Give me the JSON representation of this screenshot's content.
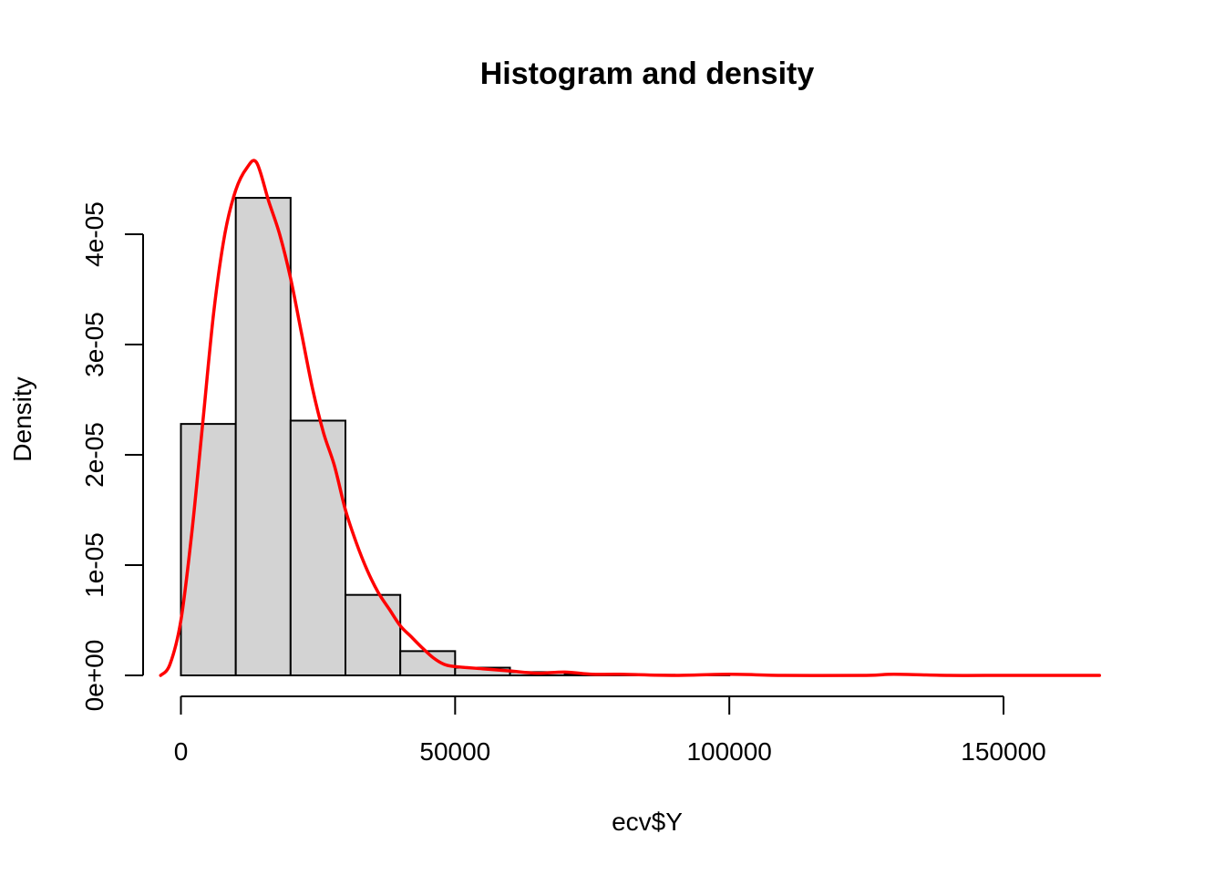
{
  "chart_data": {
    "type": "bar",
    "title": "Histogram and density",
    "xlabel": "ecv$Y",
    "ylabel": "Density",
    "xlim": [
      -4000,
      170000
    ],
    "ylim": [
      0,
      4.6e-05
    ],
    "grid": false,
    "legend": "none",
    "x_ticks": [
      {
        "value": 0,
        "label": "0"
      },
      {
        "value": 50000,
        "label": "50000"
      },
      {
        "value": 100000,
        "label": "100000"
      },
      {
        "value": 150000,
        "label": "150000"
      }
    ],
    "y_ticks": [
      {
        "value": 0,
        "label": "0e+00"
      },
      {
        "value": 1e-05,
        "label": "1e-05"
      },
      {
        "value": 2e-05,
        "label": "2e-05"
      },
      {
        "value": 3e-05,
        "label": "3e-05"
      },
      {
        "value": 4e-05,
        "label": "4e-05"
      }
    ],
    "histogram": {
      "bar_fill": "#d3d3d3",
      "bar_stroke": "#000000",
      "bins": [
        {
          "from": 0,
          "to": 10000,
          "density": 2.28e-05
        },
        {
          "from": 10000,
          "to": 20000,
          "density": 4.33e-05
        },
        {
          "from": 20000,
          "to": 30000,
          "density": 2.31e-05
        },
        {
          "from": 30000,
          "to": 40000,
          "density": 7.3e-06
        },
        {
          "from": 40000,
          "to": 50000,
          "density": 2.2e-06
        },
        {
          "from": 50000,
          "to": 60000,
          "density": 7e-07
        },
        {
          "from": 60000,
          "to": 70000,
          "density": 3e-07
        },
        {
          "from": 70000,
          "to": 80000,
          "density": 1e-07
        },
        {
          "from": 80000,
          "to": 90000,
          "density": 5e-08
        },
        {
          "from": 90000,
          "to": 100000,
          "density": 3e-08
        }
      ]
    },
    "density_curve": {
      "color": "#ff0000",
      "x": [
        -3700,
        -2000,
        0,
        2000,
        4000,
        6000,
        8000,
        10000,
        12000,
        13800,
        16000,
        18000,
        20000,
        22000,
        24000,
        26000,
        28000,
        30000,
        32000,
        34000,
        36000,
        38000,
        40000,
        42000,
        44000,
        46000,
        48000,
        50000,
        55000,
        60000,
        65000,
        70000,
        75000,
        80000,
        90000,
        100000,
        110000,
        125000,
        130000,
        140000,
        150000,
        160000,
        167500
      ],
      "y": [
        0,
        1e-06,
        5e-06,
        1.3e-05,
        2.3e-05,
        3.3e-05,
        4e-05,
        4.4e-05,
        4.6e-05,
        4.65e-05,
        4.3e-05,
        4e-05,
        3.6e-05,
        3.1e-05,
        2.6e-05,
        2.2e-05,
        1.9e-05,
        1.5e-05,
        1.2e-05,
        9.5e-06,
        7.5e-06,
        6e-06,
        4.5e-06,
        3.5e-06,
        2.5e-06,
        1.6e-06,
        1e-06,
        8e-07,
        6e-07,
        4e-07,
        2e-07,
        3e-07,
        1e-07,
        1e-07,
        0,
        1e-07,
        0,
        0,
        1e-07,
        0,
        0,
        0,
        0
      ]
    }
  }
}
